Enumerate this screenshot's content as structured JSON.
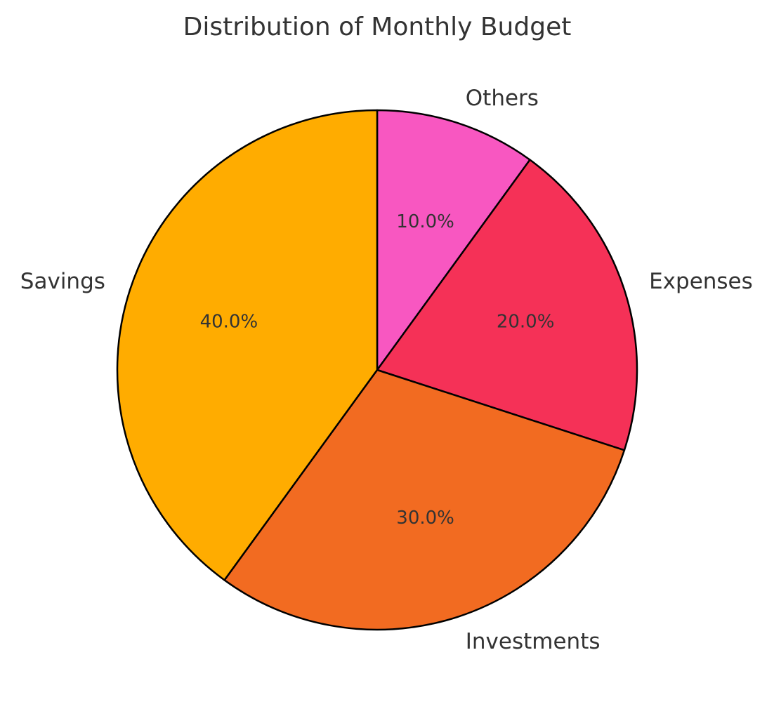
{
  "chart_data": {
    "type": "pie",
    "title": "Distribution of Monthly Budget",
    "start_angle_deg": 90,
    "direction": "clockwise",
    "slices": [
      {
        "label": "Others",
        "value": 10,
        "pct_label": "10.0%",
        "color": "#F857C1"
      },
      {
        "label": "Expenses",
        "value": 20,
        "pct_label": "20.0%",
        "color": "#F53157"
      },
      {
        "label": "Investments",
        "value": 30,
        "pct_label": "30.0%",
        "color": "#F26B21"
      },
      {
        "label": "Savings",
        "value": 40,
        "pct_label": "40.0%",
        "color": "#FFAC00"
      }
    ]
  }
}
